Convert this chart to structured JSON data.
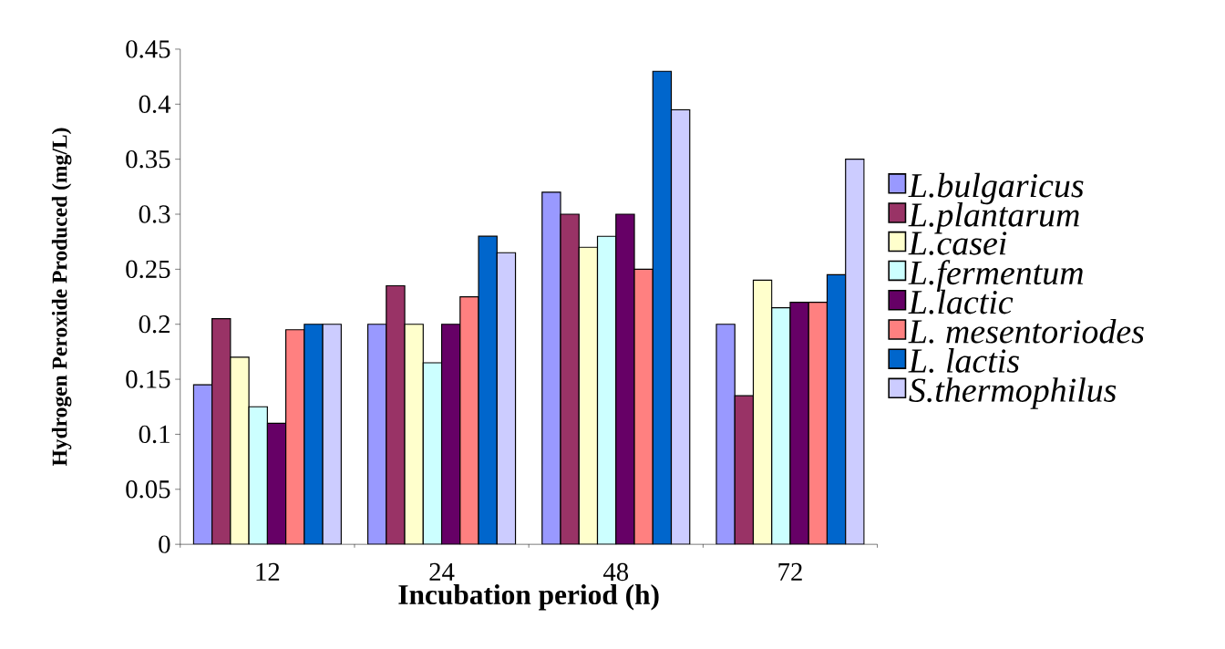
{
  "chart_data": {
    "type": "bar",
    "xlabel": "Incubation period (h)",
    "ylabel": "Hydrogen Peroxide Produced (mg/L)",
    "categories": [
      "12",
      "24",
      "48",
      "72"
    ],
    "ylim": [
      0,
      0.45
    ],
    "yticks": [
      0,
      0.05,
      0.1,
      0.15,
      0.2,
      0.25,
      0.3,
      0.35,
      0.4,
      0.45
    ],
    "legend": "right",
    "series": [
      {
        "name": "L.bulgaricus",
        "color": "#9999ff",
        "values": [
          0.145,
          0.2,
          0.32,
          0.2
        ]
      },
      {
        "name": "L.plantarum",
        "color": "#993366",
        "values": [
          0.205,
          0.235,
          0.3,
          0.135
        ]
      },
      {
        "name": "L.casei",
        "color": "#ffffcc",
        "values": [
          0.17,
          0.2,
          0.27,
          0.24
        ]
      },
      {
        "name": "L.fermentum",
        "color": "#ccffff",
        "values": [
          0.125,
          0.165,
          0.28,
          0.215
        ]
      },
      {
        "name": "L.lactic",
        "color": "#660066",
        "values": [
          0.11,
          0.2,
          0.3,
          0.22
        ]
      },
      {
        "name": "L. mesentoriodes",
        "color": "#ff8080",
        "values": [
          0.195,
          0.225,
          0.25,
          0.22
        ]
      },
      {
        "name": "L. lactis",
        "color": "#0066cc",
        "values": [
          0.2,
          0.28,
          0.43,
          0.245
        ]
      },
      {
        "name": "S.thermophilus",
        "color": "#ccccff",
        "values": [
          0.2,
          0.265,
          0.395,
          0.35
        ]
      }
    ]
  }
}
